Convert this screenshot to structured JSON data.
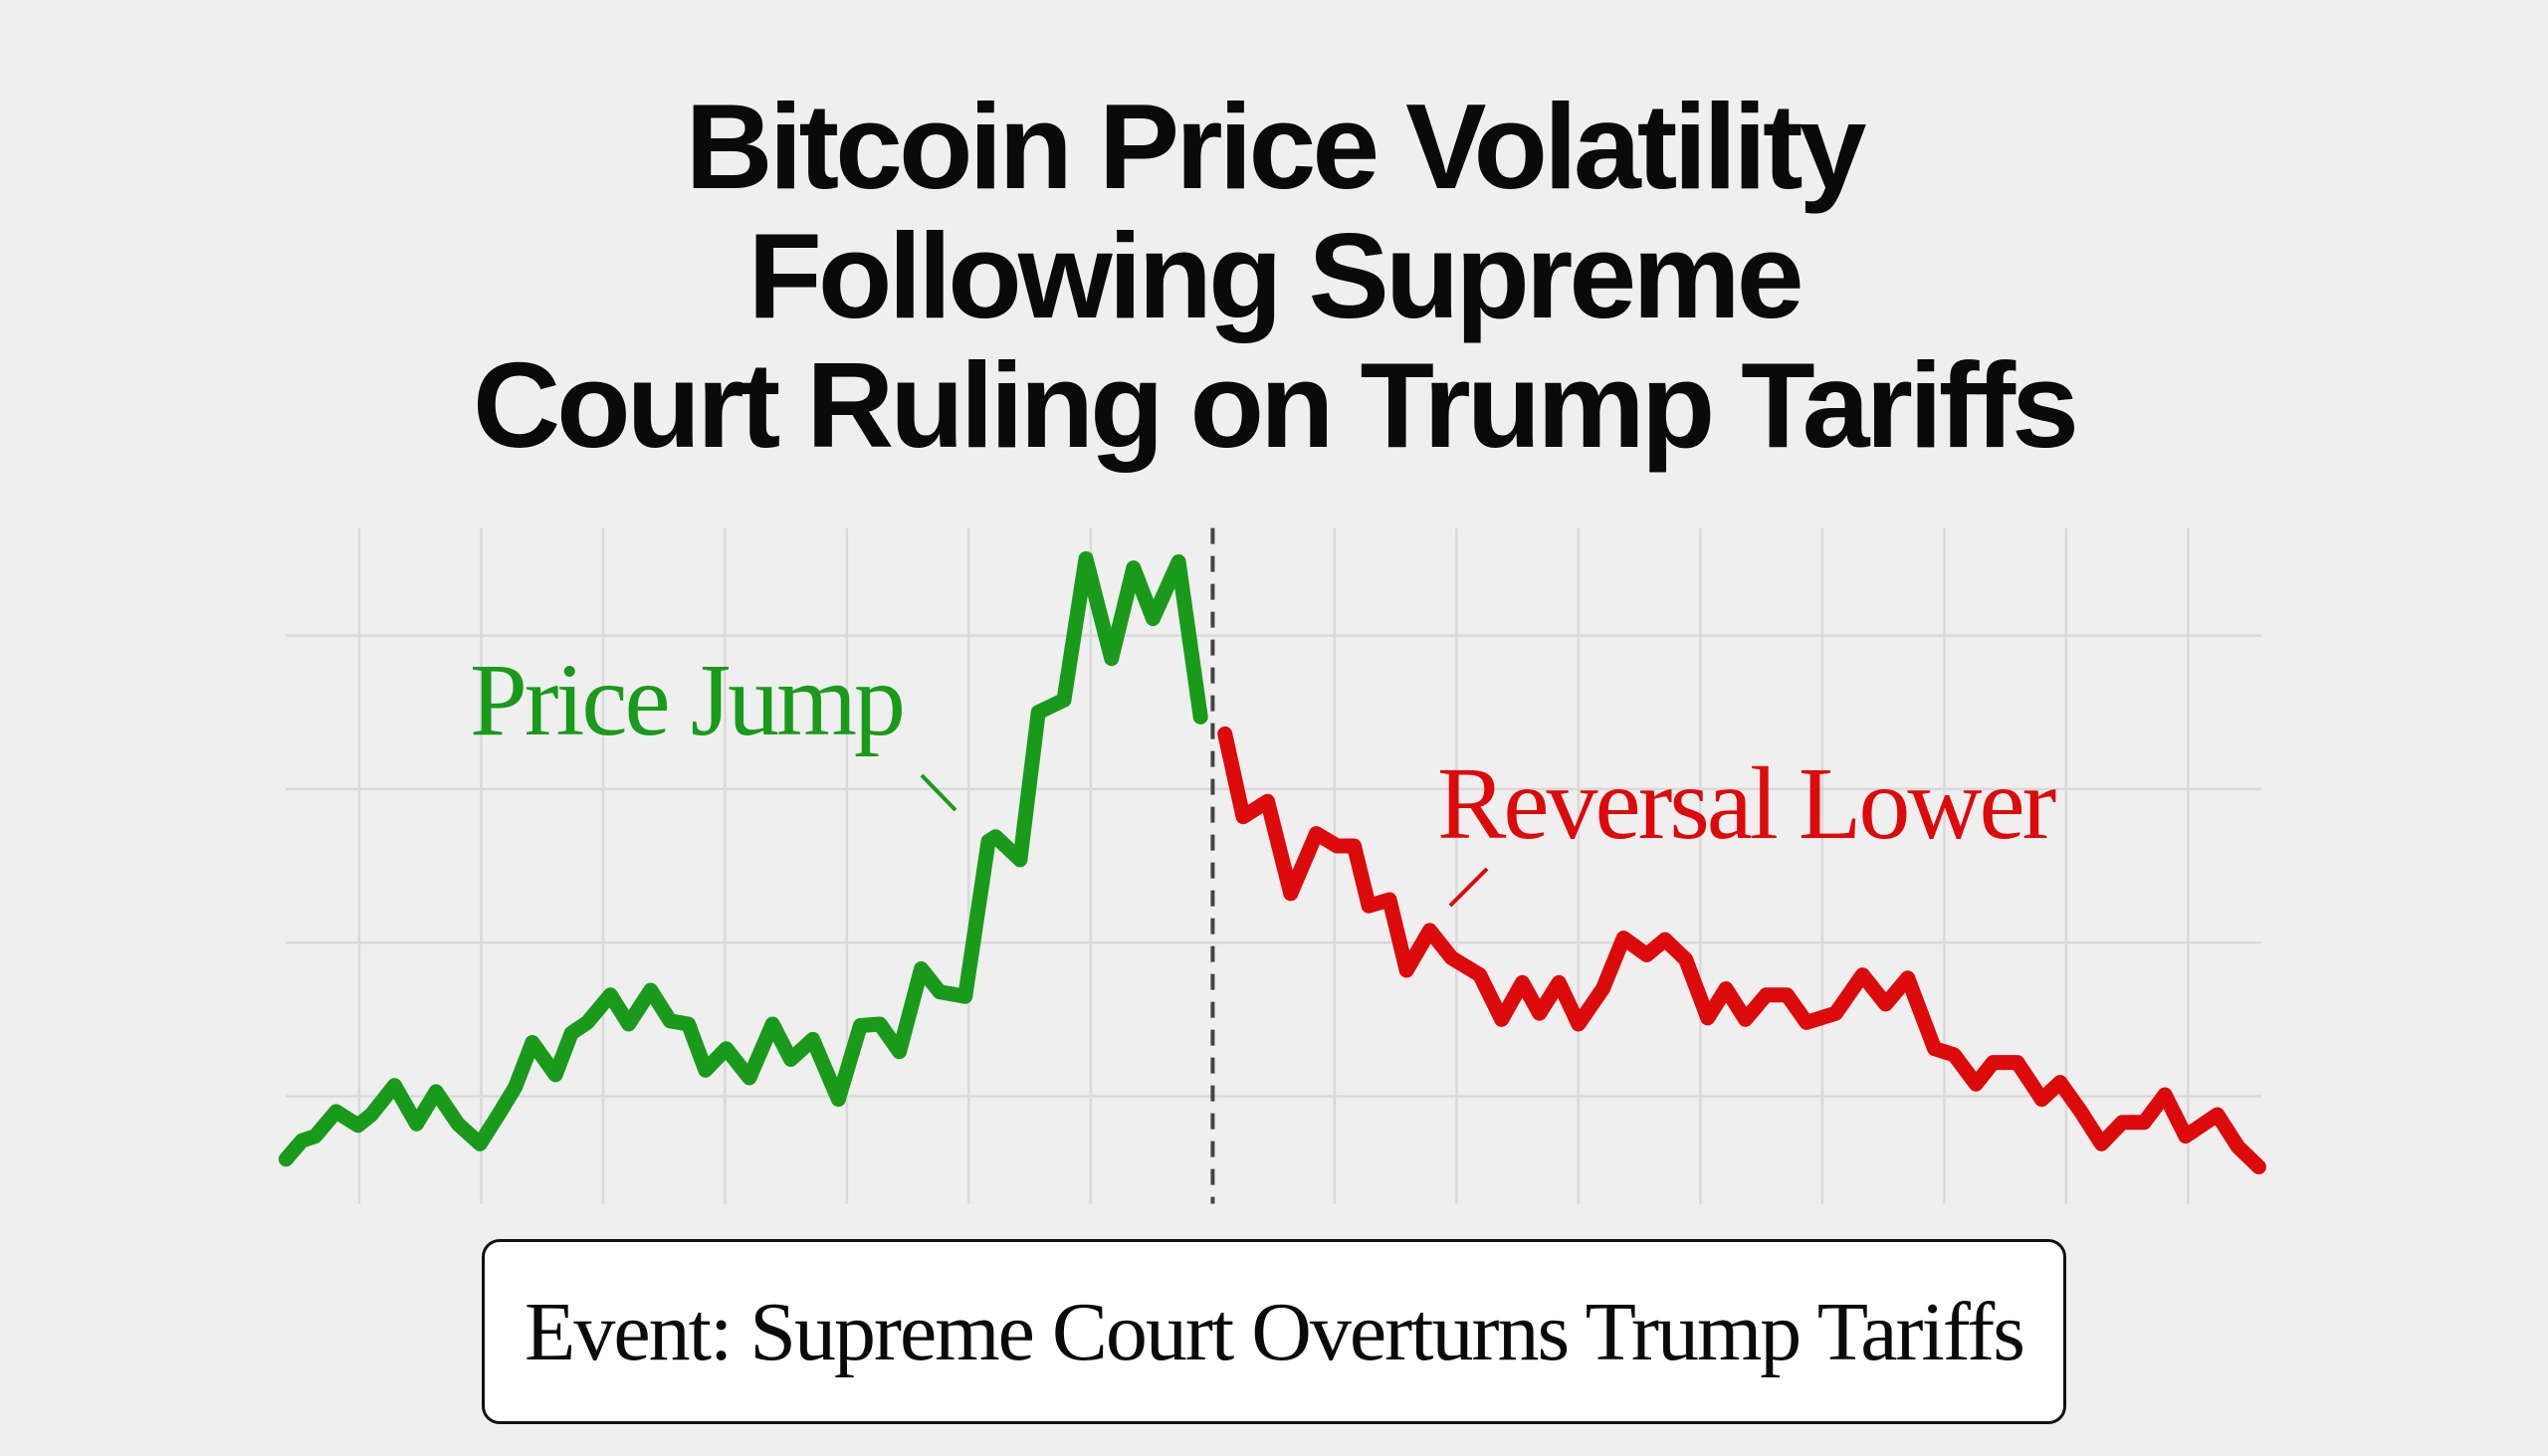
{
  "title": {
    "lines": [
      "Bitcoin Price Volatility",
      "Following Supreme",
      "Court Ruling on Trump Tariffs"
    ]
  },
  "event_box": {
    "label": "Event: Supreme Court Overturns Trump Tariffs"
  },
  "colors": {
    "rise": "#1a9a1a",
    "fall": "#dc0a0a",
    "grid": "#d9d9d9",
    "event_line": "#444444",
    "background": "#efefef"
  },
  "chart_data": {
    "type": "line",
    "title": "Bitcoin Price Volatility Following Supreme Court Ruling on Trump Tariffs",
    "xlabel": "",
    "ylabel": "",
    "axis_tick_labels": "none",
    "xlim": [
      0.4,
      16.6
    ],
    "ylim": [
      0.3,
      4.7
    ],
    "grid": true,
    "x_gridlines": [
      1,
      2,
      3,
      4,
      5,
      6,
      7,
      9,
      10,
      11,
      12,
      13,
      14,
      15,
      16
    ],
    "y_gridlines": [
      1,
      2,
      3,
      4
    ],
    "event_marker": {
      "x": 8,
      "style": "dashed",
      "label": "Event: Supreme Court Overturns Trump Tariffs"
    },
    "annotations": [
      {
        "text": "Price Jump",
        "color": "#1a9a1a",
        "points_to_x": 6.1
      },
      {
        "text": "Reversal Lower",
        "color": "#dc0a0a",
        "points_to_x": 9.8
      }
    ],
    "series": [
      {
        "color": "#1a9a1a",
        "points": [
          [
            0.4,
            0.59
          ],
          [
            0.53,
            0.71
          ],
          [
            0.64,
            0.74
          ],
          [
            0.81,
            0.9
          ],
          [
            0.99,
            0.81
          ],
          [
            1.1,
            0.88
          ],
          [
            1.29,
            1.07
          ],
          [
            1.47,
            0.82
          ],
          [
            1.63,
            1.03
          ],
          [
            1.81,
            0.82
          ],
          [
            1.99,
            0.69
          ],
          [
            2.15,
            0.89
          ],
          [
            2.28,
            1.06
          ],
          [
            2.42,
            1.35
          ],
          [
            2.61,
            1.14
          ],
          [
            2.74,
            1.41
          ],
          [
            2.87,
            1.48
          ],
          [
            3.06,
            1.66
          ],
          [
            3.21,
            1.47
          ],
          [
            3.39,
            1.69
          ],
          [
            3.55,
            1.49
          ],
          [
            3.7,
            1.47
          ],
          [
            3.84,
            1.17
          ],
          [
            4.01,
            1.31
          ],
          [
            4.2,
            1.12
          ],
          [
            4.39,
            1.47
          ],
          [
            4.54,
            1.24
          ],
          [
            4.72,
            1.37
          ],
          [
            4.93,
            0.98
          ],
          [
            5.11,
            1.46
          ],
          [
            5.27,
            1.47
          ],
          [
            5.43,
            1.29
          ],
          [
            5.61,
            1.83
          ],
          [
            5.76,
            1.68
          ],
          [
            5.97,
            1.65
          ],
          [
            6.16,
            2.66
          ],
          [
            6.22,
            2.69
          ],
          [
            6.42,
            2.54
          ],
          [
            6.57,
            3.5
          ],
          [
            6.78,
            3.58
          ],
          [
            6.96,
            4.5
          ],
          [
            7.17,
            3.85
          ],
          [
            7.35,
            4.44
          ],
          [
            7.51,
            4.11
          ],
          [
            7.72,
            4.48
          ],
          [
            7.9,
            3.47
          ]
        ]
      },
      {
        "color": "#dc0a0a",
        "points": [
          [
            8.1,
            3.36
          ],
          [
            8.25,
            2.82
          ],
          [
            8.45,
            2.92
          ],
          [
            8.64,
            2.32
          ],
          [
            8.85,
            2.71
          ],
          [
            9.02,
            2.63
          ],
          [
            9.16,
            2.63
          ],
          [
            9.28,
            2.24
          ],
          [
            9.45,
            2.28
          ],
          [
            9.59,
            1.82
          ],
          [
            9.78,
            2.08
          ],
          [
            9.96,
            1.9
          ],
          [
            10.19,
            1.79
          ],
          [
            10.37,
            1.5
          ],
          [
            10.54,
            1.74
          ],
          [
            10.68,
            1.54
          ],
          [
            10.84,
            1.74
          ],
          [
            11.0,
            1.47
          ],
          [
            11.2,
            1.7
          ],
          [
            11.37,
            2.03
          ],
          [
            11.56,
            1.92
          ],
          [
            11.71,
            2.02
          ],
          [
            11.88,
            1.89
          ],
          [
            12.06,
            1.51
          ],
          [
            12.21,
            1.7
          ],
          [
            12.37,
            1.5
          ],
          [
            12.54,
            1.66
          ],
          [
            12.71,
            1.66
          ],
          [
            12.87,
            1.48
          ],
          [
            13.11,
            1.54
          ],
          [
            13.33,
            1.79
          ],
          [
            13.52,
            1.6
          ],
          [
            13.7,
            1.77
          ],
          [
            13.92,
            1.31
          ],
          [
            14.08,
            1.27
          ],
          [
            14.26,
            1.08
          ],
          [
            14.4,
            1.22
          ],
          [
            14.6,
            1.22
          ],
          [
            14.8,
            0.98
          ],
          [
            14.95,
            1.09
          ],
          [
            15.12,
            0.9
          ],
          [
            15.29,
            0.69
          ],
          [
            15.46,
            0.83
          ],
          [
            15.64,
            0.83
          ],
          [
            15.81,
            1.01
          ],
          [
            15.98,
            0.74
          ],
          [
            16.24,
            0.88
          ],
          [
            16.41,
            0.67
          ],
          [
            16.58,
            0.54
          ]
        ]
      }
    ]
  }
}
